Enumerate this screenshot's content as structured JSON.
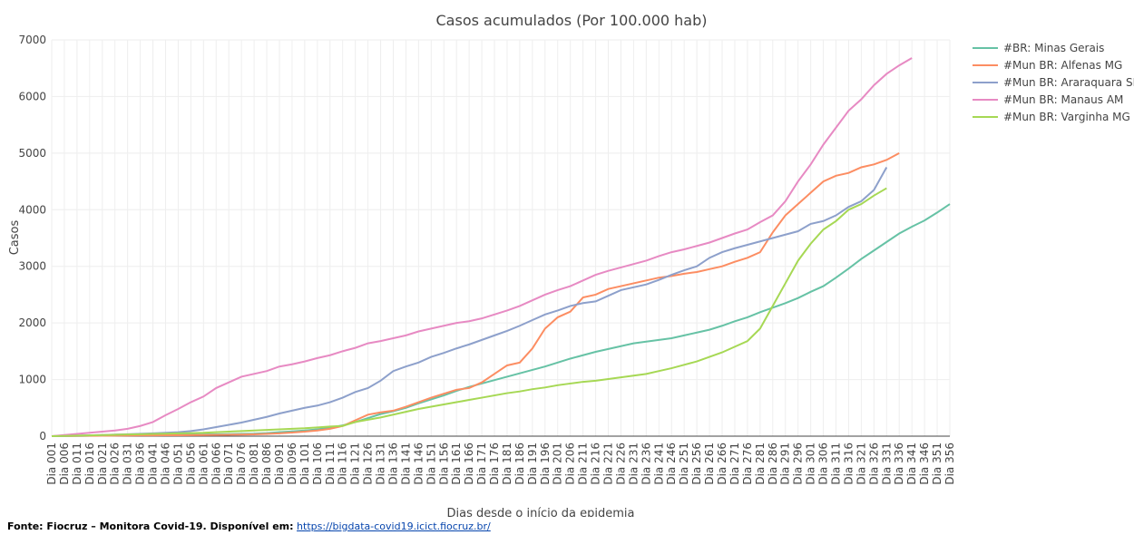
{
  "chart_data": {
    "type": "line",
    "title": "Casos acumulados (Por 100.000 hab)",
    "x_label": "Dias desde o início da epidemia",
    "y_label": "Casos",
    "categories": [
      "Dia 001",
      "Dia 006",
      "Dia 011",
      "Dia 016",
      "Dia 021",
      "Dia 026",
      "Dia 031",
      "Dia 036",
      "Dia 041",
      "Dia 046",
      "Dia 051",
      "Dia 056",
      "Dia 061",
      "Dia 066",
      "Dia 071",
      "Dia 076",
      "Dia 081",
      "Dia 086",
      "Dia 091",
      "Dia 096",
      "Dia 101",
      "Dia 106",
      "Dia 111",
      "Dia 116",
      "Dia 121",
      "Dia 126",
      "Dia 131",
      "Dia 136",
      "Dia 141",
      "Dia 146",
      "Dia 151",
      "Dia 156",
      "Dia 161",
      "Dia 166",
      "Dia 171",
      "Dia 176",
      "Dia 181",
      "Dia 186",
      "Dia 191",
      "Dia 196",
      "Dia 201",
      "Dia 206",
      "Dia 211",
      "Dia 216",
      "Dia 221",
      "Dia 226",
      "Dia 231",
      "Dia 236",
      "Dia 241",
      "Dia 246",
      "Dia 251",
      "Dia 256",
      "Dia 261",
      "Dia 266",
      "Dia 271",
      "Dia 276",
      "Dia 281",
      "Dia 286",
      "Dia 291",
      "Dia 296",
      "Dia 301",
      "Dia 306",
      "Dia 311",
      "Dia 316",
      "Dia 321",
      "Dia 326",
      "Dia 331",
      "Dia 336",
      "Dia 341",
      "Dia 346",
      "Dia 351",
      "Dia 356"
    ],
    "series": [
      {
        "name": "#BR: Minas Gerais",
        "color": "#66c2a5",
        "values": [
          0,
          2,
          5,
          8,
          10,
          13,
          16,
          18,
          20,
          22,
          25,
          28,
          30,
          33,
          36,
          40,
          45,
          55,
          70,
          85,
          100,
          120,
          150,
          190,
          250,
          320,
          390,
          440,
          500,
          580,
          650,
          720,
          800,
          870,
          930,
          990,
          1050,
          1110,
          1170,
          1230,
          1300,
          1370,
          1430,
          1490,
          1540,
          1590,
          1640,
          1670,
          1700,
          1730,
          1780,
          1830,
          1880,
          1950,
          2030,
          2100,
          2190,
          2270,
          2350,
          2440,
          2550,
          2650,
          2800,
          2960,
          3130,
          3280,
          3430,
          3580,
          3700,
          3810,
          3950,
          4100
        ]
      },
      {
        "name": "#Mun BR: Alfenas MG",
        "color": "#fc8d62",
        "values": [
          0,
          2,
          4,
          6,
          8,
          10,
          12,
          14,
          15,
          16,
          17,
          18,
          20,
          22,
          25,
          28,
          32,
          40,
          50,
          65,
          80,
          100,
          130,
          180,
          280,
          380,
          420,
          450,
          520,
          600,
          680,
          750,
          820,
          850,
          950,
          1100,
          1250,
          1300,
          1550,
          1900,
          2100,
          2200,
          2450,
          2500,
          2600,
          2650,
          2700,
          2750,
          2800,
          2830,
          2870,
          2900,
          2950,
          3000,
          3080,
          3150,
          3250,
          3600,
          3900,
          4100,
          4300,
          4500,
          4600,
          4650,
          4750,
          4800,
          4880,
          5000,
          null,
          null,
          null,
          null
        ]
      },
      {
        "name": "#Mun BR: Araraquara SP",
        "color": "#8da0cb",
        "values": [
          0,
          5,
          10,
          15,
          20,
          28,
          35,
          42,
          50,
          60,
          70,
          90,
          120,
          160,
          200,
          240,
          290,
          340,
          400,
          450,
          500,
          540,
          600,
          680,
          780,
          850,
          980,
          1150,
          1230,
          1300,
          1400,
          1470,
          1550,
          1620,
          1700,
          1780,
          1860,
          1950,
          2050,
          2150,
          2220,
          2300,
          2350,
          2380,
          2480,
          2580,
          2630,
          2680,
          2760,
          2850,
          2930,
          3000,
          3150,
          3250,
          3320,
          3380,
          3440,
          3500,
          3560,
          3620,
          3750,
          3800,
          3900,
          4050,
          4150,
          4350,
          4750,
          null,
          null,
          null,
          null,
          null
        ]
      },
      {
        "name": "#Mun BR: Manaus AM",
        "color": "#e78ac3",
        "values": [
          0,
          20,
          40,
          60,
          80,
          100,
          130,
          180,
          250,
          370,
          480,
          600,
          700,
          850,
          950,
          1050,
          1100,
          1150,
          1230,
          1270,
          1320,
          1380,
          1430,
          1500,
          1560,
          1640,
          1680,
          1730,
          1780,
          1850,
          1900,
          1950,
          2000,
          2030,
          2080,
          2150,
          2220,
          2300,
          2400,
          2500,
          2580,
          2650,
          2750,
          2850,
          2920,
          2980,
          3040,
          3100,
          3180,
          3250,
          3300,
          3360,
          3420,
          3500,
          3580,
          3650,
          3780,
          3900,
          4150,
          4500,
          4800,
          5150,
          5450,
          5750,
          5950,
          6200,
          6400,
          6550,
          6680,
          null,
          null,
          null
        ]
      },
      {
        "name": "#Mun BR: Varginha MG",
        "color": "#a6d854",
        "values": [
          0,
          5,
          10,
          15,
          20,
          25,
          30,
          35,
          40,
          45,
          50,
          55,
          60,
          70,
          80,
          90,
          100,
          110,
          120,
          130,
          140,
          155,
          170,
          180,
          250,
          290,
          330,
          380,
          430,
          480,
          520,
          560,
          600,
          640,
          680,
          720,
          760,
          790,
          830,
          860,
          900,
          930,
          960,
          980,
          1010,
          1040,
          1070,
          1100,
          1150,
          1200,
          1260,
          1320,
          1400,
          1480,
          1580,
          1680,
          1900,
          2300,
          2700,
          3100,
          3400,
          3650,
          3800,
          4000,
          4100,
          4250,
          4380,
          null,
          null,
          null,
          null,
          null
        ]
      }
    ],
    "ylim": [
      0,
      7000
    ],
    "yticks": [
      0,
      1000,
      2000,
      3000,
      4000,
      5000,
      6000,
      7000
    ],
    "grid": true,
    "legend": "right",
    "source": "Fonte: Fiocruz – Monitora Covid-19. Disponível em:",
    "source_url": "https://bigdata-covid19.icict.fiocruz.br/"
  }
}
